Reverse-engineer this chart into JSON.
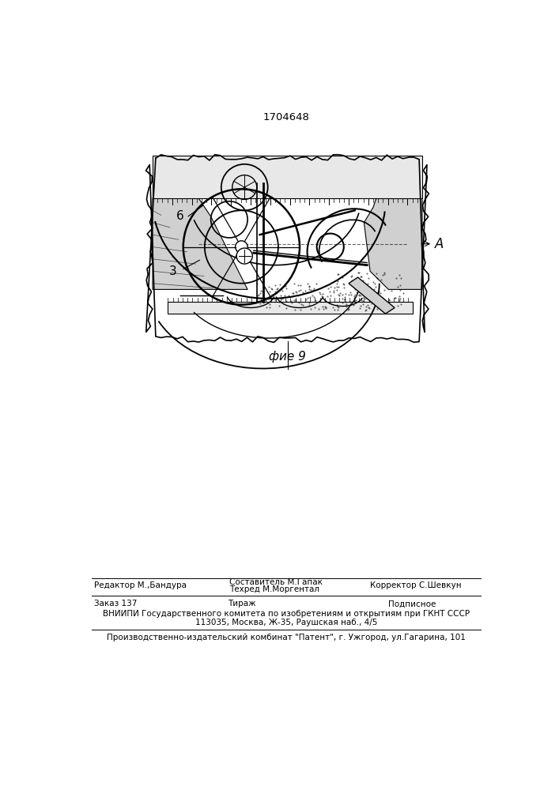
{
  "patent_number": "1704648",
  "fig_label": "фие 9",
  "label_A": "A",
  "label_6": "6",
  "label_3": "3",
  "editor_line1": "Составитель М.Гапак",
  "editor_line2": "Техред М.Моргентал",
  "editor_left": "Редактор М.,Бандура",
  "corrector": "Корректор С.Шевкун",
  "order_label": "Заказ 137",
  "tirazh_label": "Тираж",
  "podpisnoe_label": "Подписное",
  "vniip_line1": "ВНИИПИ Государственного комитета по изобретениям и открытиям при ГКНТ СССР",
  "vniip_line2": "113035, Москва, Ж-35, Раушская наб., 4/5",
  "factory_line": "Производственно-издательский комбинат \"Патент\", г. Ужгород, ул.Гагарина, 101",
  "bg_color": "#ffffff",
  "text_color": "#000000"
}
